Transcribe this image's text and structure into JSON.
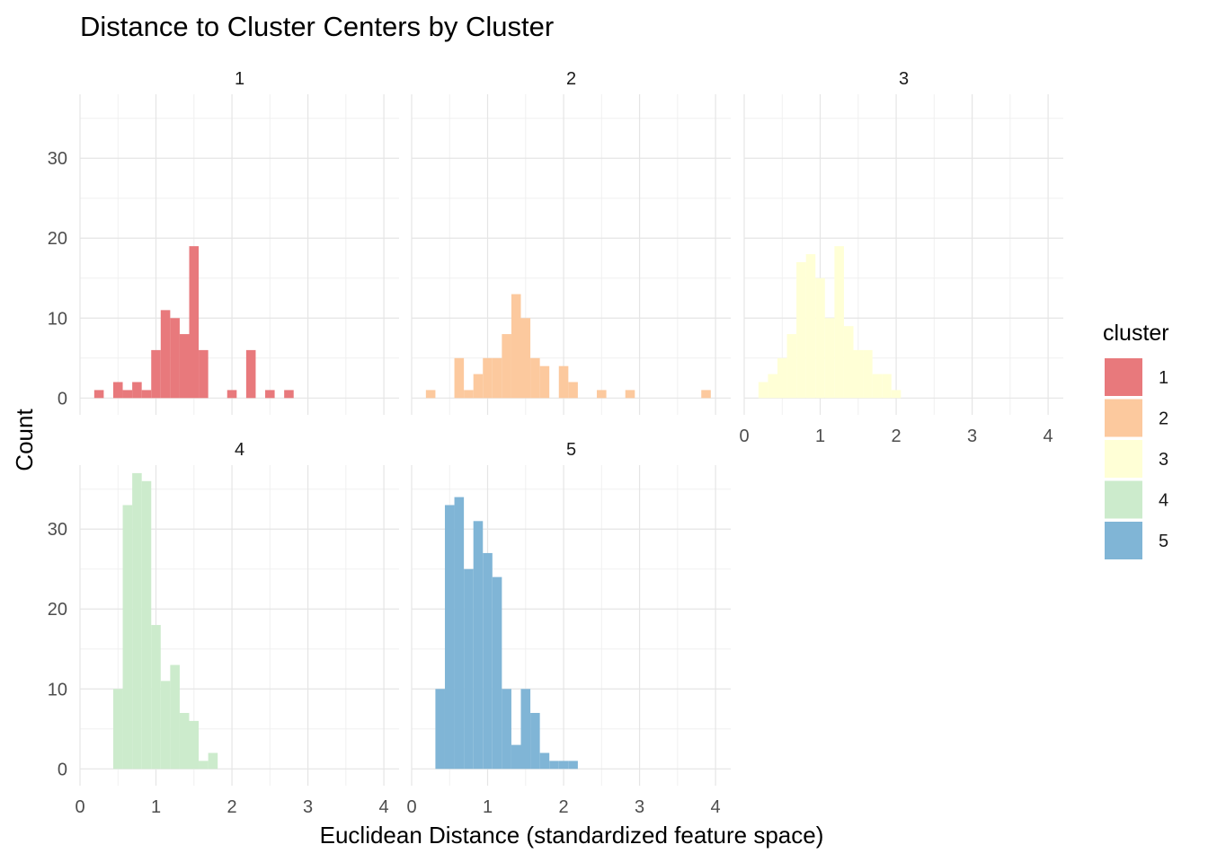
{
  "chart_data": {
    "type": "bar",
    "title": "Distance to Cluster Centers by Cluster",
    "xlabel": "Euclidean Distance (standardized feature space)",
    "ylabel": "Count",
    "xlim": [
      0,
      4.2
    ],
    "ylim": [
      0,
      38
    ],
    "x_ticks": [
      0,
      1,
      2,
      3,
      4
    ],
    "y_ticks": [
      0,
      10,
      20,
      30
    ],
    "bin_width": 0.125,
    "grid": true,
    "legend": {
      "title": "cluster",
      "position": "right",
      "entries": [
        {
          "label": "1",
          "color": "#E8797C"
        },
        {
          "label": "2",
          "color": "#FCC99E"
        },
        {
          "label": "3",
          "color": "#FFFFD6"
        },
        {
          "label": "4",
          "color": "#CCEBCC"
        },
        {
          "label": "5",
          "color": "#80B5D6"
        }
      ]
    },
    "facets": [
      {
        "label": "1",
        "color": "#E8797C",
        "bins": [
          {
            "x": 0.25,
            "count": 1
          },
          {
            "x": 0.5,
            "count": 2
          },
          {
            "x": 0.625,
            "count": 1
          },
          {
            "x": 0.75,
            "count": 2
          },
          {
            "x": 0.875,
            "count": 1
          },
          {
            "x": 1.0,
            "count": 6
          },
          {
            "x": 1.125,
            "count": 11
          },
          {
            "x": 1.25,
            "count": 10
          },
          {
            "x": 1.375,
            "count": 8
          },
          {
            "x": 1.5,
            "count": 19
          },
          {
            "x": 1.625,
            "count": 6
          },
          {
            "x": 2.0,
            "count": 1
          },
          {
            "x": 2.25,
            "count": 6
          },
          {
            "x": 2.5,
            "count": 1
          },
          {
            "x": 2.75,
            "count": 1
          }
        ]
      },
      {
        "label": "2",
        "color": "#FCC99E",
        "bins": [
          {
            "x": 0.25,
            "count": 1
          },
          {
            "x": 0.625,
            "count": 5
          },
          {
            "x": 0.75,
            "count": 1
          },
          {
            "x": 0.875,
            "count": 3
          },
          {
            "x": 1.0,
            "count": 5
          },
          {
            "x": 1.125,
            "count": 5
          },
          {
            "x": 1.25,
            "count": 8
          },
          {
            "x": 1.375,
            "count": 13
          },
          {
            "x": 1.5,
            "count": 10
          },
          {
            "x": 1.625,
            "count": 5
          },
          {
            "x": 1.75,
            "count": 4
          },
          {
            "x": 2.0,
            "count": 4
          },
          {
            "x": 2.125,
            "count": 2
          },
          {
            "x": 2.5,
            "count": 1
          },
          {
            "x": 2.875,
            "count": 1
          },
          {
            "x": 3.875,
            "count": 1
          }
        ]
      },
      {
        "label": "3",
        "color": "#FFFFD6",
        "bins": [
          {
            "x": 0.25,
            "count": 2
          },
          {
            "x": 0.375,
            "count": 3
          },
          {
            "x": 0.5,
            "count": 5
          },
          {
            "x": 0.625,
            "count": 8
          },
          {
            "x": 0.75,
            "count": 17
          },
          {
            "x": 0.875,
            "count": 18
          },
          {
            "x": 1.0,
            "count": 15
          },
          {
            "x": 1.125,
            "count": 10
          },
          {
            "x": 1.25,
            "count": 19
          },
          {
            "x": 1.375,
            "count": 9
          },
          {
            "x": 1.5,
            "count": 6
          },
          {
            "x": 1.625,
            "count": 6
          },
          {
            "x": 1.75,
            "count": 3
          },
          {
            "x": 1.875,
            "count": 3
          },
          {
            "x": 2.0,
            "count": 1
          }
        ]
      },
      {
        "label": "4",
        "color": "#CCEBCC",
        "bins": [
          {
            "x": 0.5,
            "count": 10
          },
          {
            "x": 0.625,
            "count": 33
          },
          {
            "x": 0.75,
            "count": 37
          },
          {
            "x": 0.875,
            "count": 36
          },
          {
            "x": 1.0,
            "count": 18
          },
          {
            "x": 1.125,
            "count": 11
          },
          {
            "x": 1.25,
            "count": 13
          },
          {
            "x": 1.375,
            "count": 7
          },
          {
            "x": 1.5,
            "count": 6
          },
          {
            "x": 1.625,
            "count": 1
          },
          {
            "x": 1.75,
            "count": 2
          }
        ]
      },
      {
        "label": "5",
        "color": "#80B5D6",
        "bins": [
          {
            "x": 0.375,
            "count": 10
          },
          {
            "x": 0.5,
            "count": 33
          },
          {
            "x": 0.625,
            "count": 34
          },
          {
            "x": 0.75,
            "count": 25
          },
          {
            "x": 0.875,
            "count": 31
          },
          {
            "x": 1.0,
            "count": 27
          },
          {
            "x": 1.125,
            "count": 24
          },
          {
            "x": 1.25,
            "count": 10
          },
          {
            "x": 1.375,
            "count": 3
          },
          {
            "x": 1.5,
            "count": 10
          },
          {
            "x": 1.625,
            "count": 7
          },
          {
            "x": 1.75,
            "count": 2
          },
          {
            "x": 1.875,
            "count": 1
          },
          {
            "x": 2.0,
            "count": 1
          },
          {
            "x": 2.125,
            "count": 1
          }
        ]
      }
    ]
  }
}
